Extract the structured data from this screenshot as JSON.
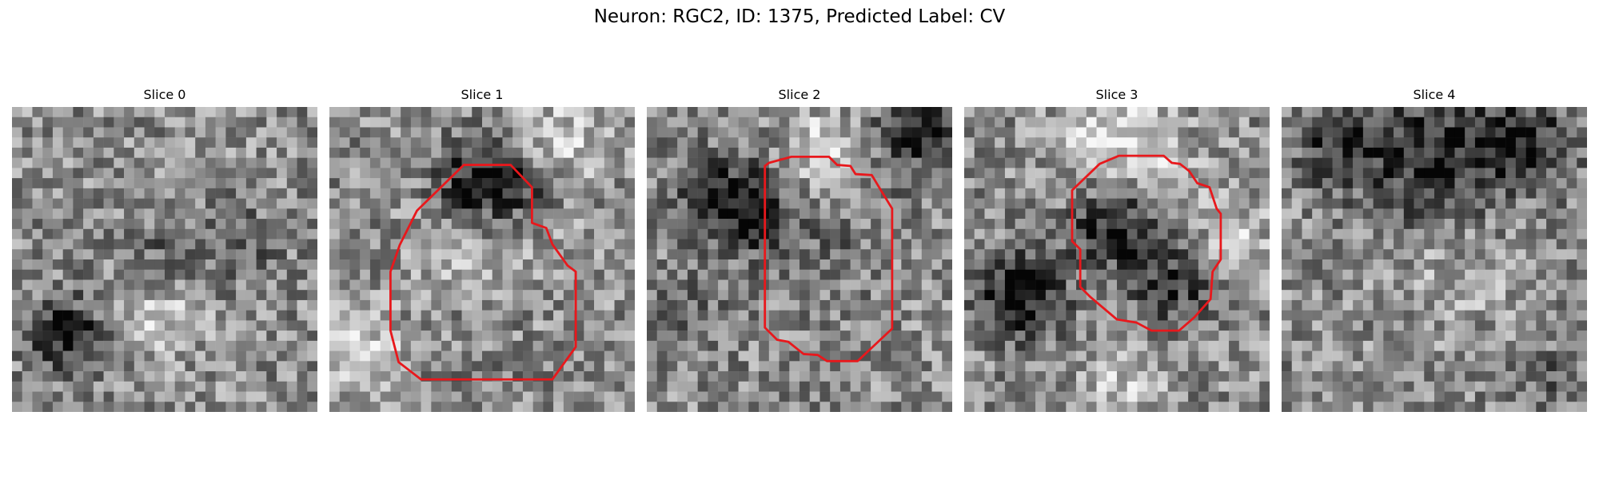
{
  "figure": {
    "title": "Neuron: RGC2, ID: 1375, Predicted Label: CV"
  },
  "slices": [
    {
      "label": "Slice 0",
      "has_contour": false
    },
    {
      "label": "Slice 1",
      "has_contour": true
    },
    {
      "label": "Slice 2",
      "has_contour": true
    },
    {
      "label": "Slice 3",
      "has_contour": true
    },
    {
      "label": "Slice 4",
      "has_contour": false
    }
  ],
  "colors": {
    "contour": "#e8181c",
    "background": "#ffffff"
  }
}
